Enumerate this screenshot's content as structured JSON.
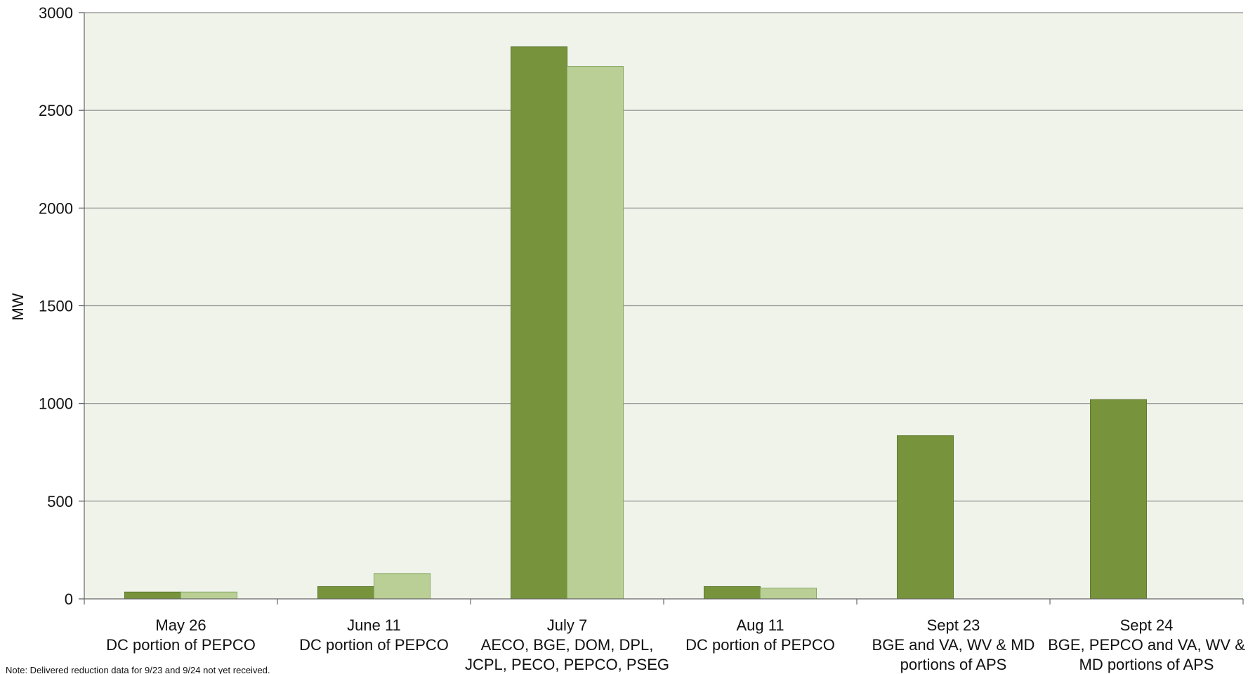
{
  "chart_data": {
    "type": "bar",
    "ylabel": "MW",
    "ylim": [
      0,
      3000
    ],
    "yticks": [
      "0",
      "500",
      "1000",
      "1500",
      "2000",
      "2500",
      "3000"
    ],
    "grid": true,
    "categories": [
      [
        "May 26",
        "DC portion of PEPCO"
      ],
      [
        "June 11",
        "DC portion of PEPCO"
      ],
      [
        "July 7",
        "AECO, BGE, DOM, DPL,",
        "JCPL, PECO, PEPCO, PSEG"
      ],
      [
        "Aug 11",
        "DC portion of PEPCO"
      ],
      [
        "Sept 23",
        "BGE and VA, WV & MD",
        "portions of APS"
      ],
      [
        "Sept 24",
        "BGE, PEPCO and VA, WV &",
        "MD portions of APS"
      ]
    ],
    "series": [
      {
        "values": [
          35,
          63,
          2825,
          63,
          835,
          1020
        ],
        "color": "#77933c"
      },
      {
        "values": [
          35,
          130,
          2725,
          55,
          null,
          null
        ],
        "color": "#b9cf95"
      }
    ],
    "plot_background": "#eff3ea",
    "gridline_color": "#8c8c8c"
  },
  "note": "Note: Delivered reduction data for 9/23 and 9/24 not yet received."
}
